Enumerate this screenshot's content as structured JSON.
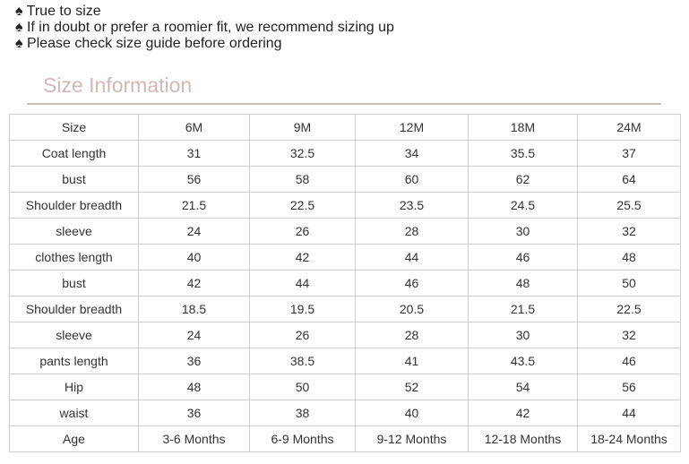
{
  "notes": [
    "♠ True to size",
    "♠ If in doubt or prefer a roomier fit, we recommend sizing up",
    "♠ Please check size guide before ordering"
  ],
  "heading": "Size Information",
  "table": {
    "header": [
      "Size",
      "6M",
      "9M",
      "12M",
      "18M",
      "24M"
    ],
    "rows": [
      [
        "Coat length",
        "31",
        "32.5",
        "34",
        "35.5",
        "37"
      ],
      [
        "bust",
        "56",
        "58",
        "60",
        "62",
        "64"
      ],
      [
        "Shoulder breadth",
        "21.5",
        "22.5",
        "23.5",
        "24.5",
        "25.5"
      ],
      [
        "sleeve",
        "24",
        "26",
        "28",
        "30",
        "32"
      ],
      [
        "clothes length",
        "40",
        "42",
        "44",
        "46",
        "48"
      ],
      [
        "bust",
        "42",
        "44",
        "46",
        "48",
        "50"
      ],
      [
        "Shoulder breadth",
        "18.5",
        "19.5",
        "20.5",
        "21.5",
        "22.5"
      ],
      [
        "sleeve",
        "24",
        "26",
        "28",
        "30",
        "32"
      ],
      [
        "pants length",
        "36",
        "38.5",
        "41",
        "43.5",
        "46"
      ],
      [
        "Hip",
        "48",
        "50",
        "52",
        "54",
        "56"
      ],
      [
        "waist",
        "36",
        "38",
        "40",
        "42",
        "44"
      ],
      [
        "Age",
        "3-6 Months",
        "6-9 Months",
        "9-12 Months",
        "12-18 Months",
        "18-24 Months"
      ]
    ]
  }
}
